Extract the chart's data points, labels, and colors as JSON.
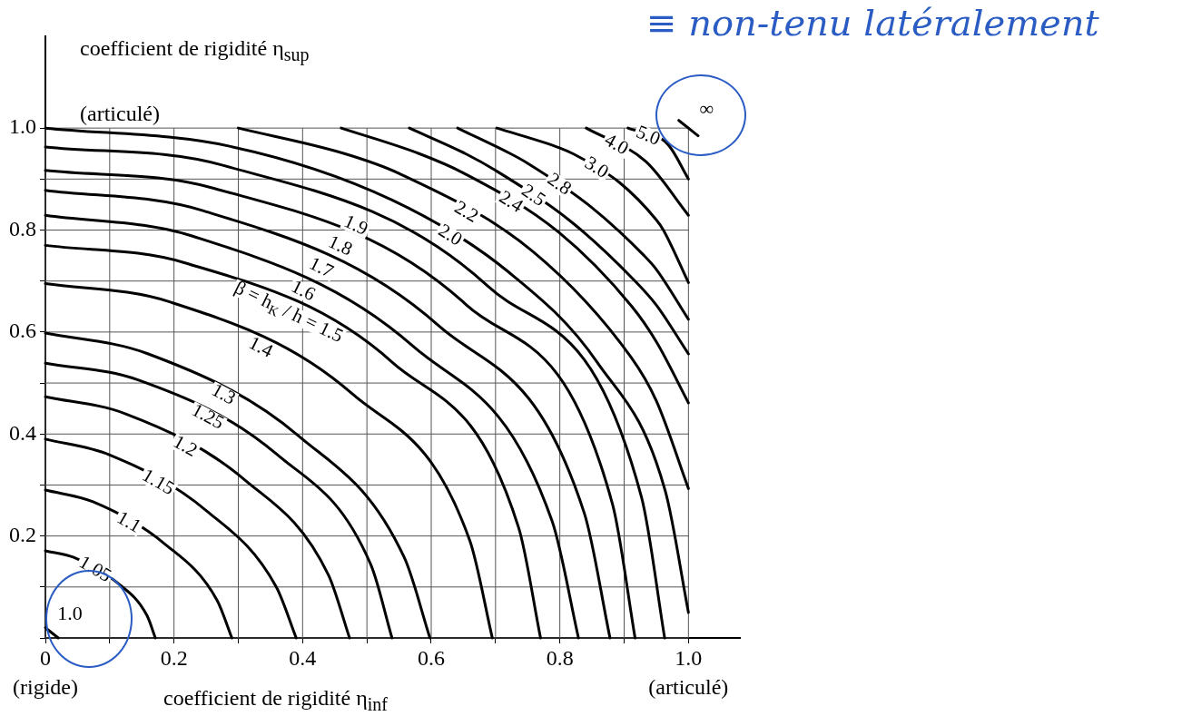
{
  "chart_data": {
    "type": "line",
    "xlabel": "coefficient de rigidité η$_{inf}$",
    "ylabel": "coefficient de rigidité η$_{sup}$",
    "xlim": [
      0,
      1.08
    ],
    "ylim": [
      0,
      1.18
    ],
    "xticks": [
      {
        "value": 0,
        "label": "0\n(rigide)"
      },
      {
        "value": 0.1,
        "label": null
      },
      0.2,
      {
        "value": 0.3,
        "label": null
      },
      0.4,
      {
        "value": 0.5,
        "label": null
      },
      0.6,
      {
        "value": 0.7,
        "label": null
      },
      0.8,
      {
        "value": 0.9,
        "label": null
      },
      {
        "value": 1,
        "label": "1.0\n(articulé)"
      }
    ],
    "yticks": [
      {
        "value": 0,
        "label": null
      },
      {
        "value": 0.1,
        "label": null
      },
      0.2,
      {
        "value": 0.3,
        "label": null
      },
      0.4,
      {
        "value": 0.5,
        "label": null
      },
      0.6,
      {
        "value": 0.7,
        "label": null
      },
      0.8,
      {
        "value": 0.9,
        "label": null
      },
      {
        "value": 1,
        "label": "1.0"
      }
    ],
    "grid": true,
    "legend": false,
    "marker": "none",
    "line_style": "solid",
    "annotations": [
      "≡ non-tenu latéralement",
      "(articulé)"
    ],
    "series": [
      {
        "name": "1.0",
        "color": "#000000",
        "x": [
          0,
          0.02
        ],
        "values": [
          0.02,
          0
        ]
      },
      {
        "name": "1.05",
        "color": "#000000",
        "x": [
          0,
          0.044,
          0.11,
          0.158,
          0.171
        ],
        "values": [
          0.171,
          0.158,
          0.11,
          0.044,
          0
        ]
      },
      {
        "name": "1.1",
        "color": "#000000",
        "x": [
          0,
          0.074,
          0.185,
          0.267,
          0.29
        ],
        "values": [
          0.29,
          0.267,
          0.185,
          0.074,
          0
        ]
      },
      {
        "name": "1.15",
        "color": "#000000",
        "x": [
          0,
          0.1,
          0.25,
          0.359,
          0.39
        ],
        "values": [
          0.39,
          0.359,
          0.25,
          0.1,
          0
        ]
      },
      {
        "name": "1.2",
        "color": "#000000",
        "x": [
          0,
          0.124,
          0.31,
          0.44,
          0.473
        ],
        "values": [
          0.473,
          0.44,
          0.31,
          0.124,
          0
        ]
      },
      {
        "name": "1.25",
        "color": "#000000",
        "x": [
          0,
          0.144,
          0.36,
          0.506,
          0.539
        ],
        "values": [
          0.539,
          0.506,
          0.36,
          0.144,
          0
        ]
      },
      {
        "name": "1.3",
        "color": "#000000",
        "x": [
          0,
          0.158,
          0.395,
          0.558,
          0.598
        ],
        "values": [
          0.598,
          0.558,
          0.395,
          0.158,
          0
        ]
      },
      {
        "name": "1.4",
        "color": "#000000",
        "x": [
          0,
          0.191,
          0.478,
          0.66,
          0.695
        ],
        "values": [
          0.695,
          0.66,
          0.478,
          0.191,
          0
        ]
      },
      {
        "name": "β = h$_{K}$ / h = 1.5",
        "color": "#000000",
        "x": [
          0,
          0.216,
          0.54,
          0.736,
          0.77
        ],
        "values": [
          0.77,
          0.736,
          0.54,
          0.216,
          0
        ]
      },
      {
        "name": "1.6",
        "color": "#000000",
        "x": [
          0,
          0.229,
          0.572,
          0.788,
          0.829
        ],
        "values": [
          0.829,
          0.788,
          0.572,
          0.229,
          0
        ]
      },
      {
        "name": "1.7",
        "color": "#000000",
        "x": [
          0,
          0.245,
          0.612,
          0.838,
          0.878
        ],
        "values": [
          0.878,
          0.838,
          0.612,
          0.245,
          0
        ]
      },
      {
        "name": "1.8",
        "color": "#000000",
        "x": [
          0,
          0.262,
          0.654,
          0.882,
          0.917
        ],
        "values": [
          0.917,
          0.882,
          0.654,
          0.262,
          0
        ]
      },
      {
        "name": "1.9",
        "color": "#000000",
        "x": [
          0,
          0.276,
          0.689,
          0.927,
          0.963
        ],
        "values": [
          0.963,
          0.927,
          0.689,
          0.276,
          0
        ]
      },
      {
        "name": "2.0",
        "color": "#000000",
        "x": [
          0,
          0.288,
          0.539,
          0.719,
          0.859,
          0.964,
          1
        ],
        "values": [
          1,
          0.964,
          0.859,
          0.719,
          0.539,
          0.288,
          0.05
        ]
      },
      {
        "name": "2.2",
        "color": "#000000",
        "x": [
          0.3,
          0.465,
          0.55,
          0.758,
          0.911,
          0.95,
          1
        ],
        "values": [
          1,
          0.95,
          0.911,
          0.758,
          0.55,
          0.465,
          0.293
        ]
      },
      {
        "name": "2.4",
        "color": "#000000",
        "x": [
          0.46,
          0.581,
          0.65,
          0.797,
          0.912,
          0.95,
          1
        ],
        "values": [
          1,
          0.95,
          0.912,
          0.797,
          0.65,
          0.581,
          0.461
        ]
      },
      {
        "name": "2.5",
        "color": "#000000",
        "x": [
          0.566,
          0.653,
          0.7,
          0.817,
          0.917,
          0.95,
          1
        ],
        "values": [
          1,
          0.95,
          0.917,
          0.817,
          0.7,
          0.653,
          0.557
        ]
      },
      {
        "name": "2.8",
        "color": "#000000",
        "x": [
          0.641,
          0.723,
          0.75,
          0.847,
          0.931,
          0.95,
          1
        ],
        "values": [
          1,
          0.95,
          0.931,
          0.847,
          0.75,
          0.723,
          0.625
        ]
      },
      {
        "name": "3.0",
        "color": "#000000",
        "x": [
          0.702,
          0.8,
          0.82,
          0.893,
          0.95,
          0.961,
          1
        ],
        "values": [
          1,
          0.961,
          0.95,
          0.893,
          0.82,
          0.8,
          0.697
        ]
      },
      {
        "name": "4.0",
        "color": "#000000",
        "x": [
          0.841,
          0.934,
          1
        ],
        "values": [
          1,
          0.934,
          0.829
        ]
      },
      {
        "name": "5.0",
        "color": "#000000",
        "x": [
          0.906,
          0.968,
          1
        ],
        "values": [
          1,
          0.968,
          0.9
        ]
      },
      {
        "name": "∞",
        "color": "#000000",
        "x": [
          0.985,
          1.015
        ],
        "values": [
          1.015,
          0.985
        ]
      }
    ]
  }
}
